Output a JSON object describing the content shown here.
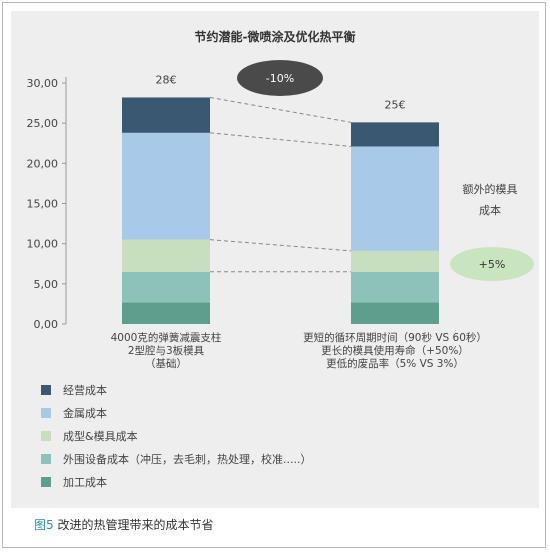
{
  "chart_data": {
    "type": "bar",
    "stacked": true,
    "title": "节约潜能-微喷涂及优化热平衡",
    "ylim": [
      0,
      30
    ],
    "yticks": [
      "0,00",
      "5,00",
      "10,00",
      "15,00",
      "20,00",
      "25,00",
      "30,00"
    ],
    "ytick_values": [
      0,
      5,
      10,
      15,
      20,
      25,
      30
    ],
    "grid": false,
    "legend_position": "bottom-left",
    "categories": [
      {
        "lines": [
          "4000克的弹簧减震支柱",
          "2型腔与3板模具",
          "（基础）"
        ],
        "total_label": "28€"
      },
      {
        "lines": [
          "更短的循环周期时间（90秒 VS 60秒）",
          "更长的模具使用寿命（+50%）",
          "更低的废品率（5% VS 3%）"
        ],
        "total_label": "25€"
      }
    ],
    "series": [
      {
        "name": "加工成本",
        "color": "#5e9e8c",
        "values": [
          2.7,
          2.7
        ]
      },
      {
        "name": "外围设备成本（冲压，去毛刺，热处理，校准.....）",
        "color": "#8dc2b8",
        "values": [
          3.8,
          3.8
        ]
      },
      {
        "name": "成型&模具成本",
        "color": "#c7dfbf",
        "values": [
          4.0,
          2.6
        ]
      },
      {
        "name": "金属成本",
        "color": "#a9c9e8",
        "values": [
          13.3,
          13.0
        ]
      },
      {
        "name": "经营成本",
        "color": "#3b5873",
        "values": [
          4.4,
          3.0
        ]
      }
    ],
    "annotations": {
      "saving_label": "-10%",
      "saving_color": "#4a4a4a",
      "increase_label": "+5%",
      "increase_color": "#c9e5bf",
      "extra_mold_cost_lines": [
        "额外的模具",
        "成本"
      ]
    }
  },
  "caption": {
    "figure_number": "图5",
    "text": " 改进的热管理带来的成本节省"
  }
}
